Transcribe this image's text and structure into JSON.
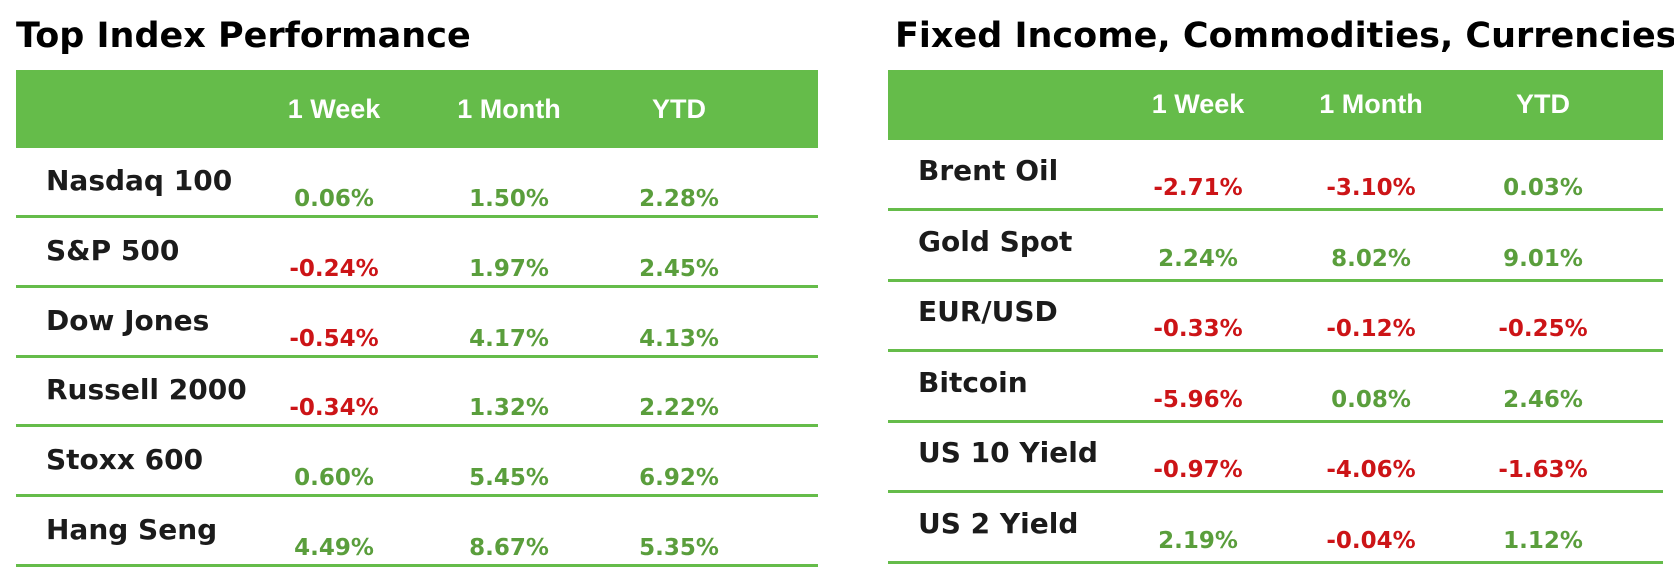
{
  "left_table": {
    "title": "Top Index Performance",
    "columns": [
      "",
      "1 Week",
      "1 Month",
      "YTD"
    ],
    "rows": [
      {
        "name": "Nasdaq 100",
        "values": [
          "0.06%",
          "1.50%",
          "2.28%"
        ]
      },
      {
        "name": "S&P 500",
        "values": [
          "-0.24%",
          "1.97%",
          "2.45%"
        ]
      },
      {
        "name": "Dow Jones",
        "values": [
          "-0.54%",
          "4.17%",
          "4.13%"
        ]
      },
      {
        "name": "Russell 2000",
        "values": [
          "-0.34%",
          "1.32%",
          "2.22%"
        ]
      },
      {
        "name": "Stoxx 600",
        "values": [
          "0.60%",
          "5.45%",
          "6.92%"
        ]
      },
      {
        "name": "Hang Seng",
        "values": [
          "4.49%",
          "8.67%",
          "5.35%"
        ]
      }
    ]
  },
  "right_table": {
    "title": "Fixed Income, Commodities, Currencies",
    "columns": [
      "",
      "1 Week",
      "1 Month",
      "YTD"
    ],
    "rows": [
      {
        "name": "Brent Oil",
        "values": [
          "-2.71%",
          "-3.10%",
          "0.03%"
        ]
      },
      {
        "name": "Gold Spot",
        "values": [
          "2.24%",
          "8.02%",
          "9.01%"
        ]
      },
      {
        "name": "EUR/USD",
        "values": [
          "-0.33%",
          "-0.12%",
          "-0.25%"
        ]
      },
      {
        "name": "Bitcoin",
        "values": [
          "-5.96%",
          "0.08%",
          "2.46%"
        ]
      },
      {
        "name": "US 10 Yield",
        "values": [
          "-0.97%",
          "-4.06%",
          "-1.63%"
        ]
      },
      {
        "name": "US 2 Yield",
        "values": [
          "2.19%",
          "-0.04%",
          "1.12%"
        ]
      }
    ]
  },
  "colors": {
    "header_green": "#65bc4a",
    "positive_green": "#5a9e3c",
    "negative_red": "#cc1417"
  }
}
